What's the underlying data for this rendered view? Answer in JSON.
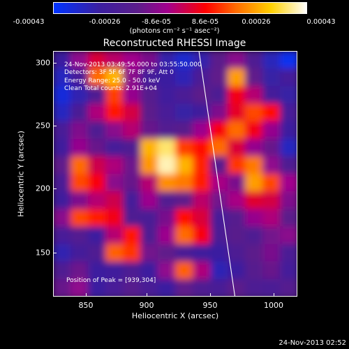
{
  "colorbar": {
    "ticks": [
      "-0.00043",
      "-0.00026",
      "-8.6e-05",
      "8.6e-05",
      "0.00026",
      "0.00043"
    ],
    "units": "(photons cm⁻² s⁻¹ asec⁻²)"
  },
  "title": "Reconstructed RHESSI Image",
  "info": {
    "time": "24-Nov-2013 03:49:56.000 to 03:55:50.000",
    "detectors": "Detectors: 3F 5F 6F 7F 8F 9F, Att 0",
    "energy": "Energy Range: 25.0 - 50.0 keV",
    "clean": "Clean    Total counts: 2.91E+04"
  },
  "peak": "Position of Peak = [939,304]",
  "axes": {
    "x_ticks": [
      "850",
      "900",
      "950",
      "1000"
    ],
    "y_ticks": [
      "300",
      "250",
      "200",
      "150"
    ],
    "x_title": "Heliocentric X (arcsec)",
    "y_title": "Heliocentric Y (arcsec)"
  },
  "footer": "24-Nov-2013 02:52",
  "chart_data": {
    "type": "heatmap",
    "title": "Reconstructed RHESSI Image",
    "xlabel": "Heliocentric X (arcsec)",
    "ylabel": "Heliocentric Y (arcsec)",
    "xlim": [
      822,
      1012
    ],
    "ylim": [
      113,
      310
    ],
    "colorbar_range": [
      -0.00043,
      0.00043
    ],
    "colorbar_ticks": [
      -0.00043,
      -0.00026,
      -8.6e-05,
      8.6e-05,
      0.00026,
      0.00043
    ],
    "peak": [
      939,
      304
    ],
    "limb_line": {
      "x1": 935,
      "y1": 310,
      "x2": 963,
      "y2": 113
    },
    "cells": [
      [
        0.18,
        0.42,
        0.54,
        0.49,
        0.45,
        0.38,
        0.16,
        0.09,
        0.16,
        0.33,
        0.41,
        0.28,
        0.13,
        0.03
      ],
      [
        0.12,
        0.23,
        0.72,
        0.82,
        0.41,
        0.22,
        0.18,
        0.14,
        0.26,
        0.34,
        0.79,
        0.34,
        0.17,
        0.22
      ],
      [
        0.07,
        0.15,
        0.28,
        0.67,
        0.43,
        0.31,
        0.2,
        0.26,
        0.33,
        0.27,
        0.58,
        0.48,
        0.22,
        0.17
      ],
      [
        0.12,
        0.26,
        0.47,
        0.62,
        0.53,
        0.33,
        0.24,
        0.17,
        0.21,
        0.39,
        0.56,
        0.68,
        0.61,
        0.24
      ],
      [
        0.24,
        0.39,
        0.28,
        0.41,
        0.48,
        0.35,
        0.29,
        0.32,
        0.44,
        0.59,
        0.72,
        0.58,
        0.43,
        0.19
      ],
      [
        0.2,
        0.43,
        0.35,
        0.23,
        0.28,
        0.82,
        0.92,
        0.67,
        0.61,
        0.72,
        0.54,
        0.43,
        0.35,
        0.12
      ],
      [
        0.34,
        0.72,
        0.52,
        0.47,
        0.36,
        0.78,
        0.96,
        0.82,
        0.64,
        0.31,
        0.66,
        0.74,
        0.42,
        0.28
      ],
      [
        0.26,
        0.68,
        0.59,
        0.41,
        0.35,
        0.48,
        0.77,
        0.74,
        0.63,
        0.46,
        0.38,
        0.79,
        0.68,
        0.45
      ],
      [
        0.2,
        0.39,
        0.48,
        0.52,
        0.23,
        0.44,
        0.29,
        0.34,
        0.49,
        0.37,
        0.46,
        0.55,
        0.53,
        0.39
      ],
      [
        0.41,
        0.68,
        0.63,
        0.58,
        0.28,
        0.26,
        0.38,
        0.61,
        0.54,
        0.24,
        0.31,
        0.43,
        0.47,
        0.33
      ],
      [
        0.24,
        0.29,
        0.19,
        0.48,
        0.62,
        0.28,
        0.44,
        0.72,
        0.59,
        0.26,
        0.32,
        0.28,
        0.37,
        0.41
      ],
      [
        0.15,
        0.22,
        0.28,
        0.71,
        0.66,
        0.37,
        0.34,
        0.26,
        0.21,
        0.18,
        0.27,
        0.33,
        0.38,
        0.26
      ],
      [
        0.28,
        0.36,
        0.19,
        0.21,
        0.27,
        0.19,
        0.42,
        0.71,
        0.47,
        0.14,
        0.19,
        0.31,
        0.35,
        0.22
      ],
      [
        0.35,
        0.42,
        0.18,
        0.24,
        0.31,
        0.25,
        0.18,
        0.34,
        0.28,
        0.25,
        0.33,
        0.27,
        0.26,
        0.3
      ]
    ]
  }
}
